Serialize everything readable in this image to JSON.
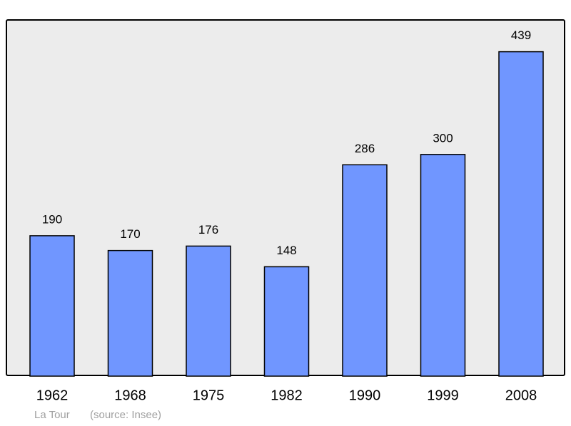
{
  "chart_data": {
    "type": "bar",
    "categories": [
      "1962",
      "1968",
      "1975",
      "1982",
      "1990",
      "1999",
      "2008"
    ],
    "values": [
      190,
      170,
      176,
      148,
      286,
      300,
      439
    ],
    "color": "#7096ff",
    "ylim": [
      0,
      482
    ],
    "place": "La Tour",
    "source": "(source: Insee)"
  }
}
